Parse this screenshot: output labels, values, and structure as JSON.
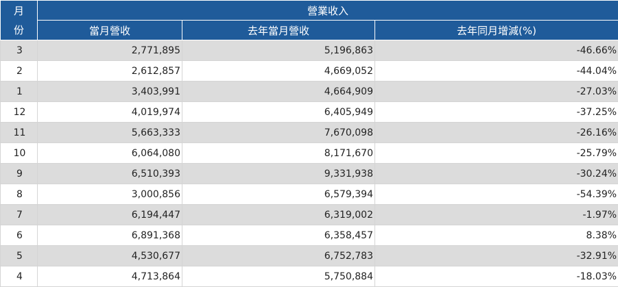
{
  "header": {
    "month_label_line1": "月",
    "month_label_line2": "份",
    "group_label": "營業收入",
    "col_current": "當月營收",
    "col_last_year": "去年當月營收",
    "col_yoy": "去年同月增減(%)"
  },
  "rows": [
    {
      "month": "3",
      "current": "2,771,895",
      "last_year": "5,196,863",
      "yoy": "-46.66%"
    },
    {
      "month": "2",
      "current": "2,612,857",
      "last_year": "4,669,052",
      "yoy": "-44.04%"
    },
    {
      "month": "1",
      "current": "3,403,991",
      "last_year": "4,664,909",
      "yoy": "-27.03%"
    },
    {
      "month": "12",
      "current": "4,019,974",
      "last_year": "6,405,949",
      "yoy": "-37.25%"
    },
    {
      "month": "11",
      "current": "5,663,333",
      "last_year": "7,670,098",
      "yoy": "-26.16%"
    },
    {
      "month": "10",
      "current": "6,064,080",
      "last_year": "8,171,670",
      "yoy": "-25.79%"
    },
    {
      "month": "9",
      "current": "6,510,393",
      "last_year": "9,331,938",
      "yoy": "-30.24%"
    },
    {
      "month": "8",
      "current": "3,000,856",
      "last_year": "6,579,394",
      "yoy": "-54.39%"
    },
    {
      "month": "7",
      "current": "6,194,447",
      "last_year": "6,319,002",
      "yoy": "-1.97%"
    },
    {
      "month": "6",
      "current": "6,891,368",
      "last_year": "6,358,457",
      "yoy": "8.38%"
    },
    {
      "month": "5",
      "current": "4,530,677",
      "last_year": "6,752,783",
      "yoy": "-32.91%"
    },
    {
      "month": "4",
      "current": "4,713,864",
      "last_year": "5,750,884",
      "yoy": "-18.03%"
    }
  ],
  "colors": {
    "header_bg": "#1f5b9a",
    "row_shade": "#dcdcdc"
  }
}
